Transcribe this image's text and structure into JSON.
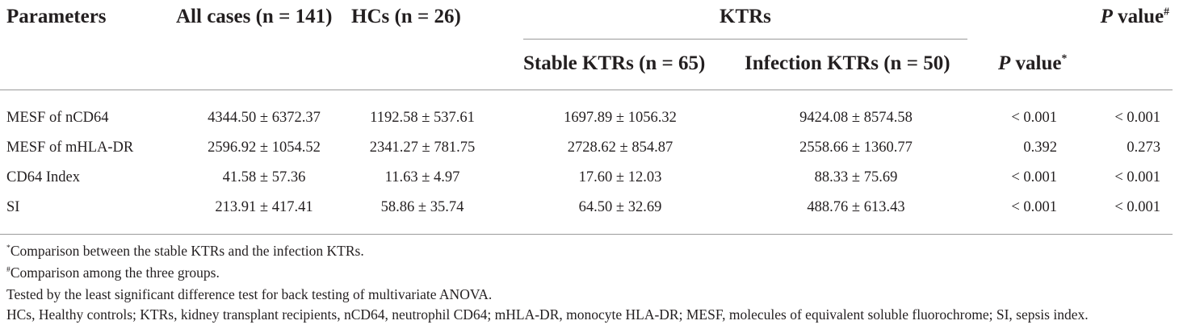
{
  "table": {
    "headers": {
      "parameters": "Parameters",
      "all_cases": "All cases (n = 141)",
      "hcs": "HCs (n = 26)",
      "ktrs_group": "KTRs",
      "stable": "Stable KTRs (n = 65)",
      "infection": "Infection KTRs (n = 50)",
      "p_value_label": "P",
      "p_value_word": "value",
      "p_star_mark": "*",
      "p_hash_mark": "#"
    },
    "rows": [
      {
        "param": "MESF of nCD64",
        "all": "4344.50 ± 6372.37",
        "hcs": "1192.58 ± 537.61",
        "stable": "1697.89 ± 1056.32",
        "infection": "9424.08 ± 8574.58",
        "p1": "< 0.001",
        "p2": "< 0.001"
      },
      {
        "param": "MESF of mHLA-DR",
        "all": "2596.92 ± 1054.52",
        "hcs": "2341.27 ± 781.75",
        "stable": "2728.62 ± 854.87",
        "infection": "2558.66 ± 1360.77",
        "p1": "0.392",
        "p2": "0.273"
      },
      {
        "param": "CD64 Index",
        "all": "41.58 ± 57.36",
        "hcs": "11.63 ± 4.97",
        "stable": "17.60 ± 12.03",
        "infection": "88.33 ± 75.69",
        "p1": "< 0.001",
        "p2": "< 0.001"
      },
      {
        "param": "SI",
        "all": "213.91 ± 417.41",
        "hcs": "58.86 ± 35.74",
        "stable": "64.50 ± 32.69",
        "infection": "488.76 ± 613.43",
        "p1": "< 0.001",
        "p2": "< 0.001"
      }
    ]
  },
  "footnotes": {
    "star_mark": "*",
    "star_text": "Comparison between the stable KTRs and the infection KTRs.",
    "hash_mark": "#",
    "hash_text": "Comparison among the three groups.",
    "tested": "Tested by the least significant difference test for back testing of multivariate ANOVA.",
    "abbrev": "HCs, Healthy controls; KTRs, kidney transplant recipients, nCD64, neutrophil CD64; mHLA-DR, monocyte HLA-DR; MESF, molecules of equivalent soluble fluorochrome; SI, sepsis index."
  }
}
